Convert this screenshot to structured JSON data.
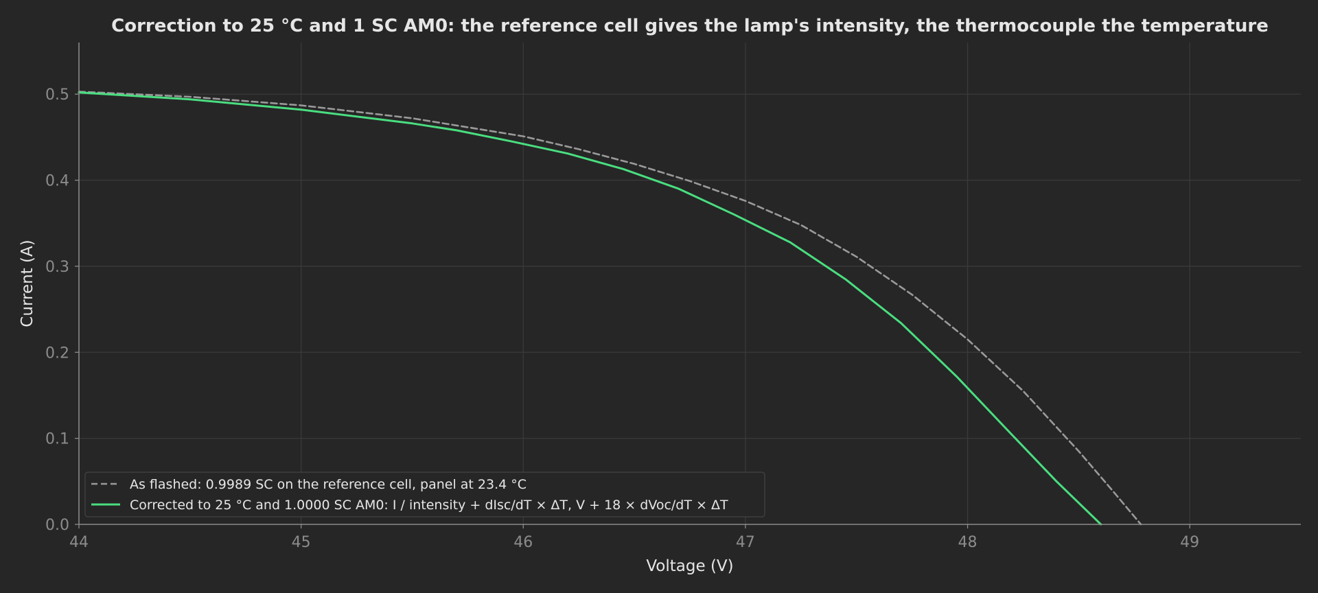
{
  "chart_data": {
    "type": "line",
    "title": "Correction to 25 °C and 1 SC AM0: the reference cell gives the lamp's intensity, the thermocouple the temperature",
    "xlabel": "Voltage (V)",
    "ylabel": "Current (A)",
    "xlim": [
      44,
      49.5
    ],
    "ylim": [
      0,
      0.56
    ],
    "xticks": [
      "44",
      "45",
      "46",
      "47",
      "48",
      "49"
    ],
    "yticks": [
      "0.0",
      "0.1",
      "0.2",
      "0.3",
      "0.4",
      "0.5"
    ],
    "grid": true,
    "legend_position": "lower-left",
    "series": [
      {
        "name": "As flashed: 0.9989 SC on the reference cell, panel at 23.4 °C",
        "style": "dashed",
        "color": "#9a9a9a",
        "x": [
          44.0,
          44.5,
          45.0,
          45.5,
          46.0,
          46.25,
          46.5,
          46.75,
          47.0,
          47.25,
          47.5,
          47.75,
          48.0,
          48.25,
          48.5,
          48.65,
          48.78
        ],
        "y": [
          0.503,
          0.497,
          0.487,
          0.472,
          0.451,
          0.436,
          0.419,
          0.399,
          0.376,
          0.348,
          0.311,
          0.267,
          0.215,
          0.155,
          0.085,
          0.04,
          0.0
        ]
      },
      {
        "name": "Corrected to 25 °C and 1.0000 SC AM0: I / intensity + dIsc/dT × ΔT, V + 18 × dVoc/dT × ΔT",
        "style": "solid",
        "color": "#4ade80",
        "x": [
          44.0,
          44.5,
          45.0,
          45.5,
          45.7,
          45.95,
          46.2,
          46.45,
          46.7,
          46.95,
          47.2,
          47.45,
          47.7,
          47.95,
          48.2,
          48.4,
          48.6
        ],
        "y": [
          0.502,
          0.494,
          0.482,
          0.466,
          0.458,
          0.445,
          0.431,
          0.413,
          0.39,
          0.36,
          0.328,
          0.285,
          0.234,
          0.172,
          0.104,
          0.05,
          0.0
        ]
      }
    ]
  }
}
